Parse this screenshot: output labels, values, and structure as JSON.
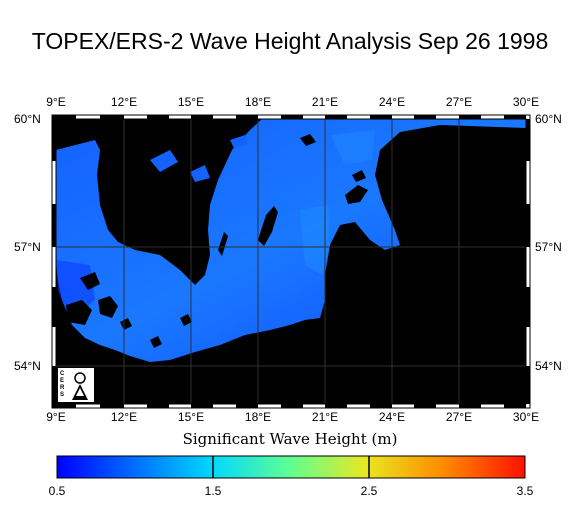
{
  "title": "TOPEX/ERS-2 Wave Height Analysis Sep 26 1998",
  "map": {
    "region": "Baltic Sea and southern Scandinavia",
    "lon_range": [
      9,
      30
    ],
    "lat_range": [
      53,
      60
    ],
    "lon_ticks": [
      "9°E",
      "12°E",
      "15°E",
      "18°E",
      "21°E",
      "24°E",
      "27°E",
      "30°E"
    ],
    "lat_ticks": [
      "60°N",
      "57°N",
      "54°N"
    ],
    "grid": true,
    "land_color": "#000000",
    "sea_color_range": [
      "#0b44ff",
      "#1c86ff"
    ],
    "logo_letters": "CERSAT"
  },
  "colorbar": {
    "label": "Significant Wave Height (m)",
    "min": 0.5,
    "max": 3.5,
    "tick_labels": [
      "0.5",
      "1.5",
      "2.5",
      "3.5"
    ],
    "colors": [
      "#0000ff",
      "#00a0ff",
      "#00ffe0",
      "#b0ff40",
      "#ffd000",
      "#ff6000",
      "#ff0000"
    ]
  }
}
